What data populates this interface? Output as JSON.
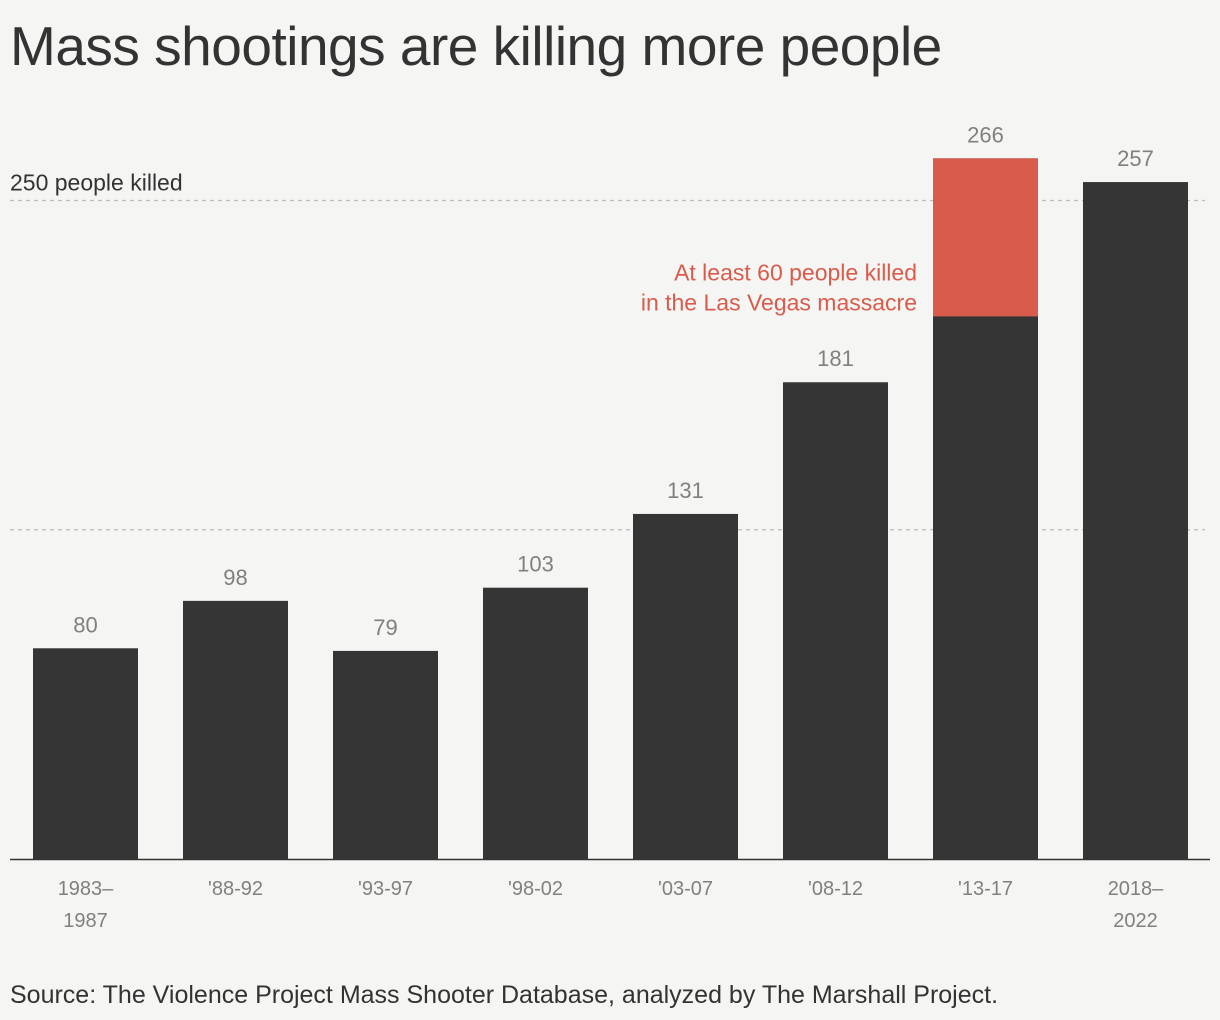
{
  "title": "Mass shootings are killing more people",
  "source": "Source: The Violence Project Mass Shooter Database, analyzed by The Marshall Project.",
  "colors": {
    "bar": "#353535",
    "highlight": "#d95b4c",
    "background": "#f5f5f3",
    "value_label": "#808080",
    "gridline": "#bbbbbb"
  },
  "chart_data": {
    "type": "bar",
    "title": "Mass shootings are killing more people",
    "categories": [
      [
        "1983–",
        "1987"
      ],
      [
        "'88-92"
      ],
      [
        "'93-97"
      ],
      [
        "'98-02"
      ],
      [
        "'03-07"
      ],
      [
        "'08-12"
      ],
      [
        "'13-17"
      ],
      [
        "2018–",
        "2022"
      ]
    ],
    "values": [
      80,
      98,
      79,
      103,
      131,
      181,
      266,
      257
    ],
    "highlight": {
      "category_index": 6,
      "value": 60,
      "position": "top of bar",
      "annotation": [
        "At least 60 people killed",
        "in the Las Vegas massacre"
      ]
    },
    "gridlines": [
      {
        "value": 125,
        "label": ""
      },
      {
        "value": 250,
        "label": "250 people killed"
      }
    ],
    "ylim": [
      0,
      266
    ],
    "xlabel": "",
    "ylabel": "",
    "legend": "none",
    "grid": true
  }
}
